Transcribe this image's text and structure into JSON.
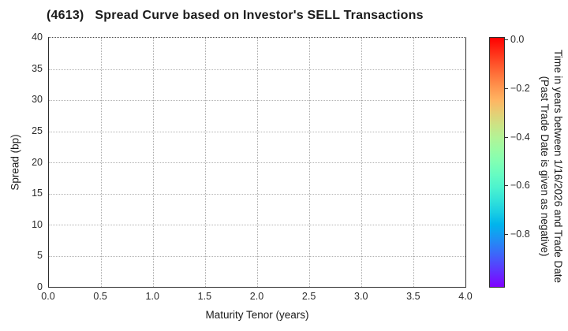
{
  "chart_data": {
    "type": "scatter",
    "title": "(4613)   Spread Curve based on Investor's SELL Transactions",
    "xlabel": "Maturity Tenor (years)",
    "ylabel": "Spread (bp)",
    "xlim": [
      0.0,
      4.0
    ],
    "ylim": [
      0,
      40
    ],
    "x_ticks": [
      "0.0",
      "0.5",
      "1.0",
      "1.5",
      "2.0",
      "2.5",
      "3.0",
      "3.5",
      "4.0"
    ],
    "y_ticks": [
      "0",
      "5",
      "10",
      "15",
      "20",
      "25",
      "30",
      "35",
      "40"
    ],
    "grid": true,
    "grid_style": "dotted",
    "points": [],
    "legend": null,
    "colorbar": {
      "label_line1": "Time in years between 1/16/2026 and Trade Date",
      "label_line2": "(Past Trade Date is given as negative)",
      "ticks": [
        "0.0",
        "−0.2",
        "−0.4",
        "−0.6",
        "−0.8"
      ],
      "tick_values": [
        0.0,
        -0.2,
        -0.4,
        -0.6,
        -0.8
      ],
      "range": [
        0.01,
        -1.02
      ],
      "colormap": "rainbow_r",
      "stops": [
        {
          "pos": 0,
          "color": "#ff0000"
        },
        {
          "pos": 5,
          "color": "#ff2814"
        },
        {
          "pos": 10,
          "color": "#ff4f28"
        },
        {
          "pos": 15,
          "color": "#ff743b"
        },
        {
          "pos": 20,
          "color": "#ff964f"
        },
        {
          "pos": 25,
          "color": "#ffb462"
        },
        {
          "pos": 30,
          "color": "#e6ce74"
        },
        {
          "pos": 35,
          "color": "#cce385"
        },
        {
          "pos": 40,
          "color": "#b3f396"
        },
        {
          "pos": 45,
          "color": "#99fca5"
        },
        {
          "pos": 50,
          "color": "#80ffb4"
        },
        {
          "pos": 55,
          "color": "#66fcc2"
        },
        {
          "pos": 60,
          "color": "#4df3ce"
        },
        {
          "pos": 65,
          "color": "#33e3d9"
        },
        {
          "pos": 70,
          "color": "#1acee3"
        },
        {
          "pos": 75,
          "color": "#00b4ec"
        },
        {
          "pos": 80,
          "color": "#1a96f3"
        },
        {
          "pos": 85,
          "color": "#3374f8"
        },
        {
          "pos": 90,
          "color": "#4d4ffc"
        },
        {
          "pos": 95,
          "color": "#6628fe"
        },
        {
          "pos": 100,
          "color": "#8000ff"
        }
      ]
    },
    "colors": {
      "spine": "#2e2e2e",
      "gridline": "#adadad",
      "text": "#1a1a1a"
    }
  }
}
